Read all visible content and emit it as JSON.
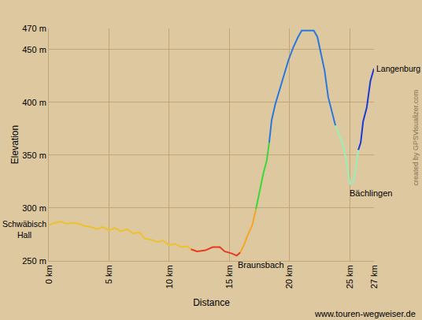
{
  "chart_data": {
    "type": "line",
    "x_label": "Distance",
    "y_label": "Elevation",
    "xlim": [
      0,
      27
    ],
    "ylim": [
      250,
      470
    ],
    "xticks": [
      {
        "value": 0,
        "label": "0 km"
      },
      {
        "value": 5,
        "label": "5 km"
      },
      {
        "value": 10,
        "label": "10 km"
      },
      {
        "value": 15,
        "label": "15 km"
      },
      {
        "value": 20,
        "label": "20 km"
      },
      {
        "value": 25,
        "label": "25 km"
      },
      {
        "value": 27,
        "label": "27 km"
      }
    ],
    "yticks": [
      {
        "value": 250,
        "label": "250 m"
      },
      {
        "value": 300,
        "label": "300 m"
      },
      {
        "value": 350,
        "label": "350 m"
      },
      {
        "value": 400,
        "label": "400 m"
      },
      {
        "value": 450,
        "label": "450 m"
      },
      {
        "value": 470,
        "label": "470 m"
      }
    ],
    "grid": true,
    "series": [
      {
        "color": "#ecc22c",
        "x": [
          0,
          0.5,
          1,
          1.5,
          2,
          2.5,
          3,
          3.5,
          4,
          4.5,
          5,
          5.5,
          6,
          6.5,
          7,
          7.5,
          8,
          8.5,
          9,
          9.5,
          10,
          10.5,
          11,
          11.5,
          11.8
        ],
        "values": [
          284,
          286,
          287,
          285,
          286,
          285,
          283,
          282,
          280,
          282,
          279,
          281,
          278,
          280,
          276,
          277,
          271,
          270,
          268,
          269,
          265,
          266,
          263,
          264,
          261
        ]
      },
      {
        "color": "#e83a1e",
        "x": [
          11.8,
          12.3,
          13,
          13.6,
          14.2,
          14.6,
          15.2,
          15.6,
          15.9
        ],
        "values": [
          261,
          259,
          260,
          263,
          263,
          259,
          257,
          255,
          258
        ]
      },
      {
        "color": "#f5a623",
        "x": [
          15.9,
          16.2,
          16.5,
          16.9,
          17.2
        ],
        "values": [
          258,
          265,
          274,
          284,
          299
        ]
      },
      {
        "color": "#3ad83a",
        "x": [
          17.2,
          17.5,
          17.8,
          18.1,
          18.3
        ],
        "values": [
          299,
          315,
          332,
          345,
          362
        ]
      },
      {
        "color": "#2878e0",
        "x": [
          18.3,
          18.5,
          18.8,
          19.1,
          19.5,
          19.9,
          20.3,
          20.7,
          21,
          21.5,
          22,
          22.3,
          22.6,
          22.9,
          23.2,
          23.5,
          23.8
        ],
        "values": [
          362,
          383,
          398,
          410,
          425,
          440,
          452,
          462,
          468,
          468,
          468,
          462,
          447,
          430,
          405,
          392,
          378
        ]
      },
      {
        "color": "#98f0b8",
        "x": [
          23.8,
          24.1,
          24.4,
          24.7,
          25,
          25.3,
          25.5,
          25.7
        ],
        "values": [
          378,
          370,
          361,
          345,
          323,
          325,
          338,
          355
        ]
      },
      {
        "color": "#1a3ad8",
        "x": [
          25.7,
          25.9,
          26.1,
          26.4,
          26.7,
          26.9,
          27
        ],
        "values": [
          355,
          362,
          382,
          395,
          420,
          428,
          432
        ]
      }
    ],
    "annotations": [
      {
        "text": "Schwäbisch Hall",
        "x": 0,
        "y": 284
      },
      {
        "text": "Braunsbach",
        "x": 15.7,
        "y": 255
      },
      {
        "text": "Bächlingen",
        "x": 25,
        "y": 323
      },
      {
        "text": "Langenburg",
        "x": 27,
        "y": 432
      }
    ],
    "source": "www.touren-wegweiser.de",
    "credit": "created by GPSVisualizer.com"
  }
}
